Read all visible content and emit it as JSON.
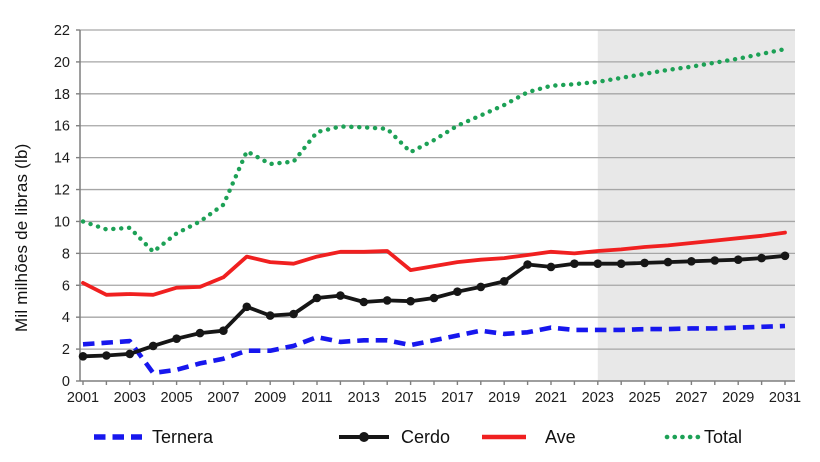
{
  "chart_data": {
    "type": "line",
    "title": "",
    "xlabel": "",
    "ylabel": "Mil milhões de libras (lb)",
    "ylim": [
      0,
      22
    ],
    "yticks": [
      0,
      2,
      4,
      6,
      8,
      10,
      12,
      14,
      16,
      18,
      20,
      22
    ],
    "xticks": [
      2001,
      2003,
      2005,
      2007,
      2009,
      2011,
      2013,
      2015,
      2017,
      2019,
      2021,
      2023,
      2025,
      2027,
      2029,
      2031
    ],
    "x": [
      2001,
      2002,
      2003,
      2004,
      2005,
      2006,
      2007,
      2008,
      2009,
      2010,
      2011,
      2012,
      2013,
      2014,
      2015,
      2016,
      2017,
      2018,
      2019,
      2020,
      2021,
      2022,
      2023,
      2024,
      2025,
      2026,
      2027,
      2028,
      2029,
      2030,
      2031
    ],
    "grid": "horizontal",
    "legend_position": "bottom",
    "gridline_color": "#a6a6a6",
    "axis_color": "#7f7f7f",
    "forecast_band": {
      "start": 2023,
      "end": 2031,
      "color": "#e8e8e8"
    },
    "series": [
      {
        "name": "Ternera",
        "color": "#1717ee",
        "style": "dashed",
        "values": [
          2.3,
          2.4,
          2.5,
          0.5,
          0.7,
          1.1,
          1.4,
          1.9,
          1.9,
          2.2,
          2.75,
          2.45,
          2.55,
          2.55,
          2.25,
          2.55,
          2.85,
          3.15,
          2.95,
          3.05,
          3.35,
          3.2,
          3.2,
          3.2,
          3.25,
          3.25,
          3.3,
          3.3,
          3.35,
          3.4,
          3.45
        ]
      },
      {
        "name": "Cerdo",
        "color": "#161616",
        "style": "solid-markers",
        "values": [
          1.55,
          1.6,
          1.7,
          2.2,
          2.65,
          3.0,
          3.15,
          4.65,
          4.1,
          4.2,
          5.2,
          5.35,
          4.95,
          5.05,
          5.0,
          5.2,
          5.6,
          5.9,
          6.25,
          7.3,
          7.15,
          7.35,
          7.35,
          7.35,
          7.4,
          7.45,
          7.5,
          7.55,
          7.6,
          7.7,
          7.85
        ]
      },
      {
        "name": "Ave",
        "color": "#f02020",
        "style": "solid",
        "values": [
          6.15,
          5.4,
          5.45,
          5.4,
          5.85,
          5.9,
          6.5,
          7.8,
          7.45,
          7.35,
          7.8,
          8.1,
          8.1,
          8.15,
          6.95,
          7.2,
          7.45,
          7.6,
          7.7,
          7.9,
          8.1,
          8.0,
          8.15,
          8.25,
          8.4,
          8.5,
          8.65,
          8.8,
          8.95,
          9.1,
          9.3
        ]
      },
      {
        "name": "Total",
        "color": "#1da156",
        "style": "dotted",
        "values": [
          10.0,
          9.5,
          9.6,
          8.1,
          9.25,
          10.0,
          11.05,
          14.4,
          13.6,
          13.75,
          15.6,
          15.95,
          15.9,
          15.8,
          14.35,
          15.1,
          16.0,
          16.65,
          17.3,
          18.1,
          18.5,
          18.6,
          18.75,
          19.0,
          19.25,
          19.5,
          19.7,
          19.95,
          20.2,
          20.5,
          20.8
        ]
      }
    ]
  }
}
